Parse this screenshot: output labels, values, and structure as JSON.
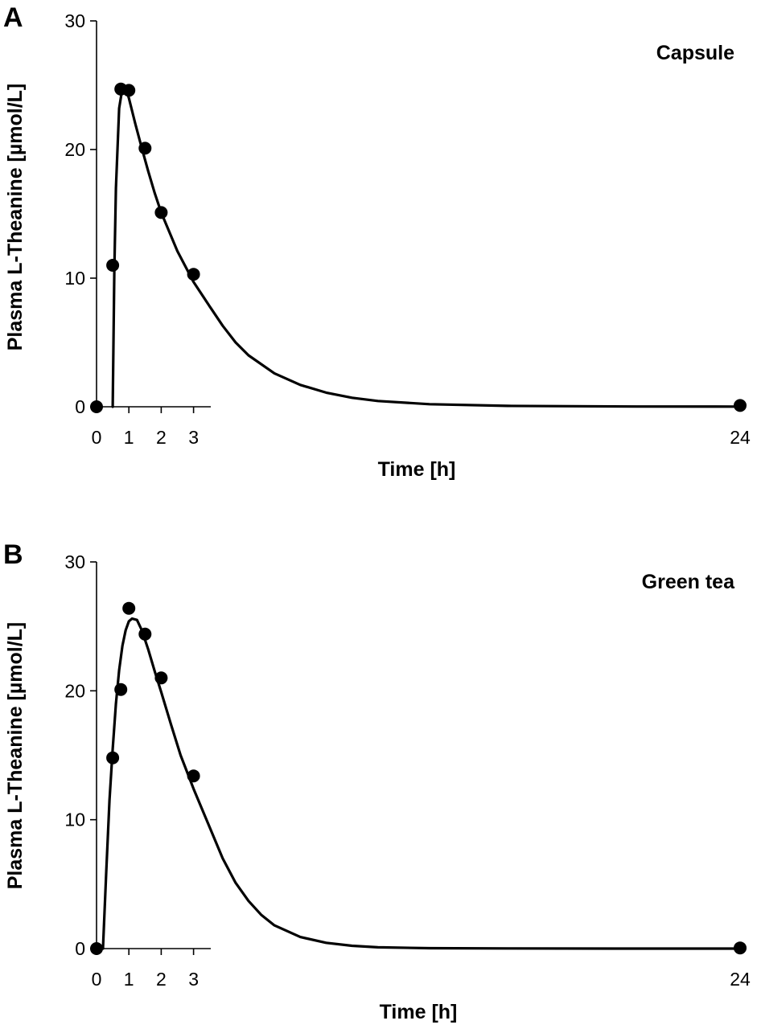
{
  "colors": {
    "ink": "#000000",
    "background": "#ffffff"
  },
  "chart_data": [
    {
      "type": "scatter",
      "panel_label": "A",
      "title": "Capsule",
      "xlabel": "Time [h]",
      "ylabel": "Plasma L-Theanine [µmol/L]",
      "xlim": [
        0,
        24
      ],
      "ylim": [
        0,
        30
      ],
      "x_ticks": [
        0,
        1,
        2,
        3,
        24
      ],
      "y_ticks": [
        0,
        10,
        20,
        30
      ],
      "grid": false,
      "points": {
        "x": [
          0,
          0.5,
          0.75,
          1,
          1.5,
          2,
          3,
          24
        ],
        "y": [
          0,
          11.0,
          24.7,
          24.6,
          20.1,
          15.1,
          10.3,
          0.1
        ]
      },
      "fit_curve": {
        "x": [
          0.5,
          0.55,
          0.6,
          0.7,
          0.8,
          0.9,
          1.0,
          1.2,
          1.4,
          1.6,
          1.8,
          2.0,
          2.5,
          3.0,
          3.5,
          4.0,
          4.5,
          5.0,
          6.0,
          7.0,
          8.0,
          9.0,
          10.0,
          12.0,
          15.0,
          20.0,
          24.0
        ],
        "y": [
          0,
          10.5,
          17.0,
          23.2,
          24.8,
          24.8,
          24.0,
          22.0,
          20.1,
          18.3,
          16.6,
          15.1,
          12.1,
          9.7,
          7.8,
          6.3,
          5.0,
          4.0,
          2.6,
          1.7,
          1.1,
          0.7,
          0.45,
          0.2,
          0.07,
          0.02,
          0.01
        ]
      }
    },
    {
      "type": "scatter",
      "panel_label": "B",
      "title": "Green tea",
      "xlabel": "Time [h]",
      "ylabel": "Plasma L-Theanine [µmol/L]",
      "xlim": [
        0,
        24
      ],
      "ylim": [
        0,
        30
      ],
      "x_ticks": [
        0,
        1,
        2,
        3,
        24
      ],
      "y_ticks": [
        0,
        10,
        20,
        30
      ],
      "grid": false,
      "points": {
        "x": [
          0,
          0.5,
          0.75,
          1,
          1.5,
          2,
          3,
          24
        ],
        "y": [
          0,
          14.8,
          20.1,
          26.4,
          24.4,
          21.0,
          13.4,
          0.05
        ]
      },
      "fit_curve": {
        "x": [
          0.2,
          0.3,
          0.4,
          0.5,
          0.6,
          0.7,
          0.8,
          0.9,
          1.0,
          1.1,
          1.25,
          1.4,
          1.6,
          1.8,
          2.0,
          2.3,
          2.6,
          3.0,
          3.5,
          4.0,
          4.5,
          5.0,
          5.5,
          6.0,
          7.0,
          8.0,
          9.0,
          10.0,
          12.0,
          15.0,
          20.0,
          24.0
        ],
        "y": [
          0,
          6.0,
          11.5,
          15.5,
          19.0,
          21.6,
          23.5,
          24.7,
          25.4,
          25.6,
          25.5,
          24.7,
          23.2,
          21.5,
          19.9,
          17.4,
          15.0,
          12.4,
          9.4,
          7.0,
          5.1,
          3.7,
          2.6,
          1.8,
          0.9,
          0.45,
          0.22,
          0.1,
          0.03,
          0.01,
          0.0,
          0.0
        ]
      }
    }
  ]
}
